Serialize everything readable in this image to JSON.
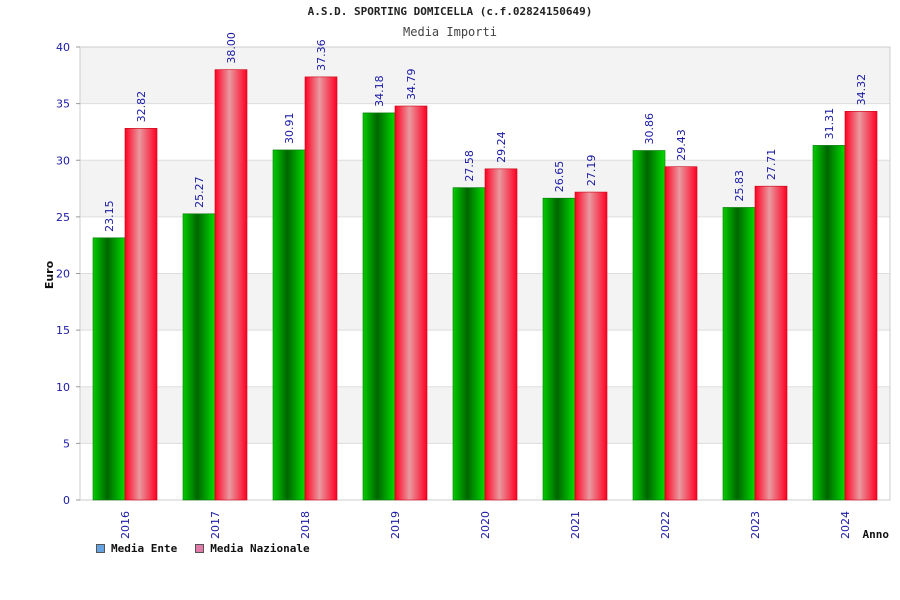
{
  "header": {
    "title": "A.S.D. SPORTING DOMICELLA (c.f.02824150649)",
    "subtitle": "Media Importi"
  },
  "chart_data": {
    "type": "bar",
    "title": "A.S.D. SPORTING DOMICELLA (c.f.02824150649)",
    "subtitle": "Media Importi",
    "xlabel": "Anno",
    "ylabel": "Euro",
    "ylim": [
      0,
      40
    ],
    "yticks": [
      "0",
      "5",
      "10",
      "15",
      "20",
      "25",
      "30",
      "35",
      "40"
    ],
    "categories": [
      "2016",
      "2017",
      "2018",
      "2019",
      "2020",
      "2021",
      "2022",
      "2023",
      "2024"
    ],
    "series": [
      {
        "name": "Media Ente",
        "values": [
          23.15,
          25.27,
          30.91,
          34.18,
          27.58,
          26.65,
          30.86,
          25.83,
          31.31
        ],
        "labels": [
          "23.15",
          "25.27",
          "30.91",
          "34.18",
          "27.58",
          "26.65",
          "30.86",
          "25.83",
          "31.31"
        ],
        "color": "#00aa00",
        "legend_color": "#66a3e0"
      },
      {
        "name": "Media Nazionale",
        "values": [
          32.82,
          38.0,
          37.36,
          34.79,
          29.24,
          27.19,
          29.43,
          27.71,
          34.32
        ],
        "labels": [
          "32.82",
          "38.00",
          "37.36",
          "34.79",
          "29.24",
          "27.19",
          "29.43",
          "27.71",
          "34.32"
        ],
        "color": "#ff1a2e",
        "legend_color": "#e07aa8"
      }
    ],
    "grid": true,
    "legend_position": "bottom-left"
  }
}
